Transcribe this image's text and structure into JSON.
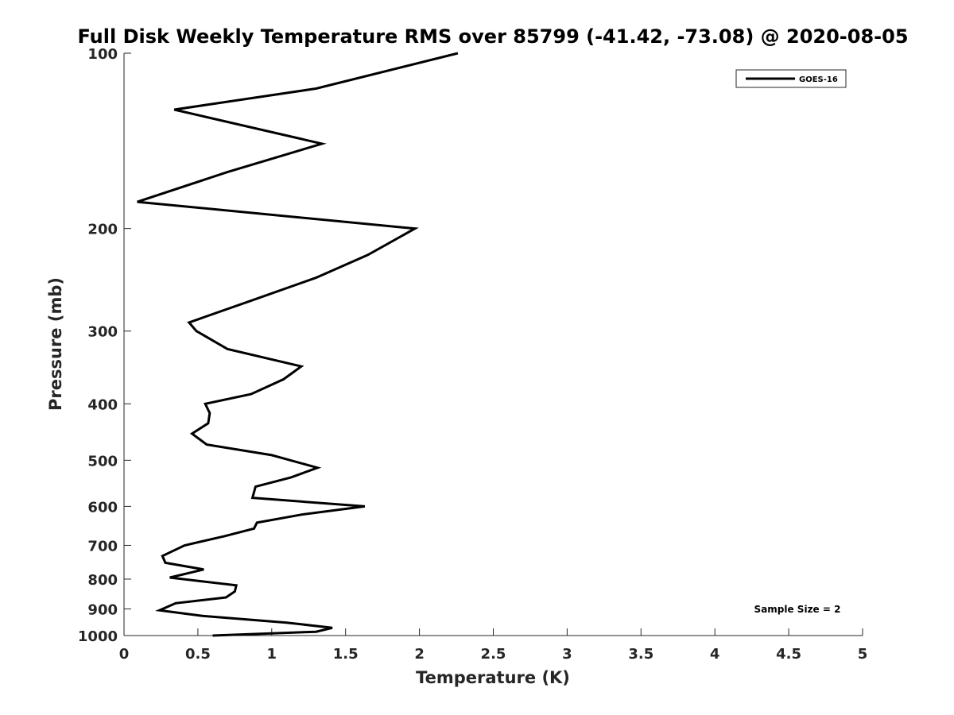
{
  "chart_data": {
    "type": "line",
    "title": "Full Disk Weekly Temperature RMS over 85799 (-41.42, -73.08) @ 2020-08-05",
    "xlabel": "Temperature (K)",
    "ylabel": "Pressure (mb)",
    "xlim": [
      0,
      5
    ],
    "ylim": [
      1000,
      100
    ],
    "yscale": "log",
    "y_reversed": true,
    "grid": false,
    "legend_position": "top-right",
    "x_ticks": [
      "0",
      "0.5",
      "1",
      "1.5",
      "2",
      "2.5",
      "3",
      "3.5",
      "4",
      "4.5",
      "5"
    ],
    "y_ticks": [
      "100",
      "200",
      "300",
      "400",
      "500",
      "600",
      "700",
      "800",
      "900",
      "1000"
    ],
    "annotation": "Sample Size = 2",
    "series": [
      {
        "name": "GOES-16",
        "color": "#000000",
        "x": [
          2.26,
          1.3,
          0.34,
          1.34,
          0.7,
          0.09,
          1.97,
          1.65,
          1.3,
          0.88,
          0.44,
          0.49,
          0.7,
          1.2,
          1.08,
          0.86,
          0.55,
          0.58,
          0.57,
          0.46,
          0.56,
          1.0,
          1.31,
          1.13,
          0.89,
          0.87,
          1.63,
          1.2,
          0.9,
          0.88,
          0.68,
          0.41,
          0.26,
          0.28,
          0.54,
          0.31,
          0.76,
          0.75,
          0.69,
          0.35,
          0.24,
          0.53,
          1.1,
          1.41,
          1.3,
          0.6
        ],
        "y": [
          100,
          115,
          125,
          143,
          160,
          180,
          200,
          222,
          243,
          265,
          290,
          300,
          322,
          345,
          363,
          385,
          400,
          415,
          432,
          450,
          470,
          490,
          515,
          535,
          555,
          580,
          600,
          620,
          640,
          655,
          675,
          700,
          730,
          750,
          770,
          795,
          820,
          840,
          860,
          880,
          905,
          925,
          950,
          970,
          985,
          1000
        ]
      }
    ]
  }
}
